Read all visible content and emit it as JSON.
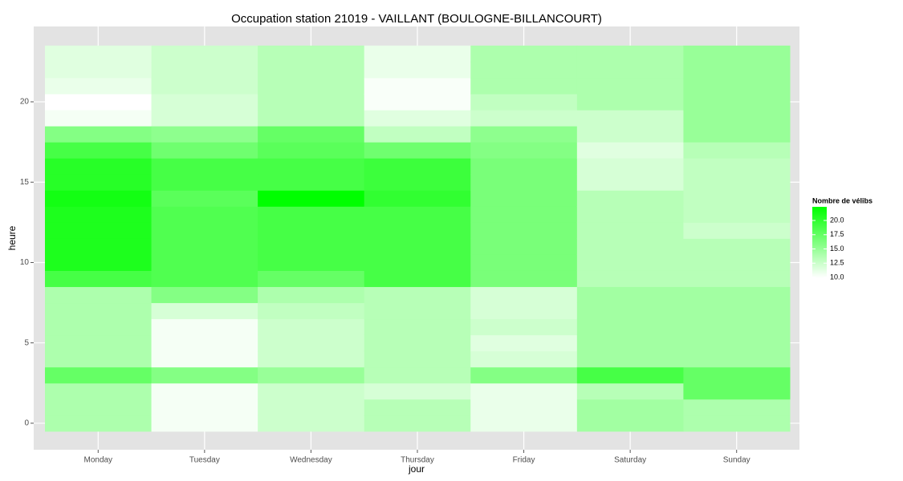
{
  "chart_data": {
    "type": "heatmap",
    "title": "Occupation station 21019 - VAILLANT (BOULOGNE-BILLANCOURT)",
    "x_label": "jour",
    "y_label": "heure",
    "legend_title": "Nombre de vélibs",
    "categories": [
      "Monday",
      "Tuesday",
      "Wednesday",
      "Thursday",
      "Friday",
      "Saturday",
      "Sunday"
    ],
    "y": [
      0,
      1,
      2,
      3,
      4,
      5,
      6,
      7,
      8,
      9,
      10,
      11,
      12,
      13,
      14,
      15,
      16,
      17,
      18,
      19,
      20,
      21,
      22,
      23
    ],
    "values": [
      [
        14,
        14,
        14,
        17.5,
        14,
        14,
        14,
        14,
        14,
        19,
        21,
        21,
        21,
        21,
        21.5,
        20.5,
        20.5,
        19,
        16,
        10.5,
        10,
        11,
        11.5,
        11.5
      ],
      [
        10.5,
        10.5,
        10.5,
        16,
        10.5,
        10.5,
        10.5,
        12,
        16,
        18.5,
        18.5,
        18.5,
        18.5,
        18.5,
        18,
        19,
        19,
        17,
        15.5,
        12,
        12,
        12.5,
        12.5,
        12.5
      ],
      [
        12.5,
        12.5,
        12.5,
        15,
        12.5,
        12.5,
        12.5,
        13,
        14,
        17.5,
        19,
        19,
        19,
        19,
        22.4,
        19,
        19,
        18,
        17.5,
        13.5,
        13.5,
        13.5,
        13.5,
        13.5
      ],
      [
        13.5,
        13.5,
        12,
        13.5,
        13.5,
        13.5,
        13.5,
        13.5,
        13.5,
        19,
        19,
        19,
        19,
        19,
        20,
        19.5,
        19.5,
        17,
        13,
        11.5,
        10.3,
        10.3,
        11,
        11
      ],
      [
        11,
        11,
        11,
        16,
        12,
        11.5,
        12.5,
        12,
        12,
        16.5,
        16.5,
        16.5,
        16.5,
        16.5,
        16.5,
        16.5,
        16.5,
        16,
        15.5,
        12.5,
        13,
        14,
        14,
        14
      ],
      [
        14.5,
        14.5,
        13.5,
        19,
        14.5,
        14.5,
        14.5,
        14.5,
        14.5,
        13.5,
        13.5,
        13.5,
        13.5,
        13.5,
        13.5,
        12,
        12,
        11.5,
        12.5,
        12.5,
        14,
        14,
        14,
        14
      ],
      [
        14,
        14,
        17.5,
        17.5,
        14.5,
        14.5,
        14.5,
        14.5,
        14.5,
        13.5,
        13.5,
        13.5,
        12.5,
        13,
        13,
        13,
        13,
        13.5,
        15,
        15,
        15,
        15,
        15,
        15
      ]
    ],
    "ylim": [
      -1.65,
      24.69
    ],
    "yticks": [
      0,
      5,
      10,
      15,
      20
    ],
    "colorlim": [
      10,
      22.4
    ],
    "color_low": "#ffffff",
    "color_high": "#00ff00",
    "legend_ticks": [
      {
        "value": 10,
        "label": "10.0"
      },
      {
        "value": 12.5,
        "label": "12.5"
      },
      {
        "value": 15,
        "label": "15.0"
      },
      {
        "value": 17.5,
        "label": "17.5"
      },
      {
        "value": 20,
        "label": "20.0"
      }
    ],
    "grid": true
  }
}
